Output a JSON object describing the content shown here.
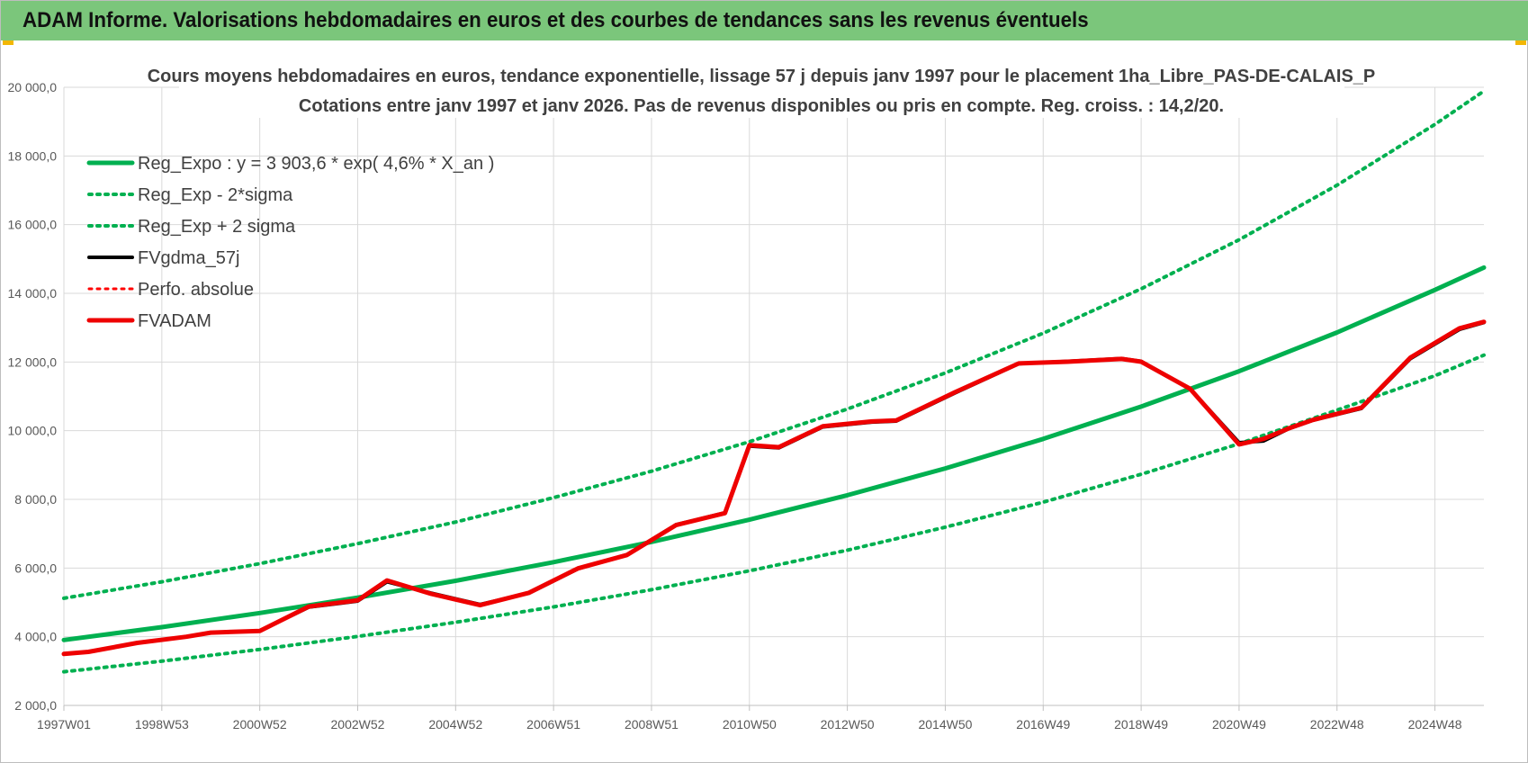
{
  "banner": {
    "title": "ADAM Informe. Valorisations hebdomadaires en euros et des courbes de tendances sans les revenus éventuels",
    "accent_color": "#7bc67b"
  },
  "chart_data": {
    "type": "line",
    "title": "Cours moyens hebdomadaires en euros, tendance exponentielle, lissage 57 j depuis janv 1997 pour le placement 1ha_Libre_PAS-DE-CALAIS_P",
    "subtitle": "Cotations entre janv 1997 et janv 2026. Pas de revenus disponibles ou pris en compte. Reg. croiss. : 14,2/20.",
    "xlabel": "",
    "ylabel": "",
    "ylim": [
      2000,
      20000
    ],
    "xlim": [
      1997.0,
      2026.0
    ],
    "grid": true,
    "legend_position": "top-left",
    "y_ticks": [
      {
        "value": 2000,
        "label": "2 000,0"
      },
      {
        "value": 4000,
        "label": "4 000,0"
      },
      {
        "value": 6000,
        "label": "6 000,0"
      },
      {
        "value": 8000,
        "label": "8 000,0"
      },
      {
        "value": 10000,
        "label": "10 000,0"
      },
      {
        "value": 12000,
        "label": "12 000,0"
      },
      {
        "value": 14000,
        "label": "14 000,0"
      },
      {
        "value": 16000,
        "label": "16 000,0"
      },
      {
        "value": 18000,
        "label": "18 000,0"
      },
      {
        "value": 20000,
        "label": "20 000,0"
      }
    ],
    "x_ticks": [
      {
        "value": 1997.0,
        "label": "1997W01"
      },
      {
        "value": 1999.0,
        "label": "1998W53"
      },
      {
        "value": 2001.0,
        "label": "2000W52"
      },
      {
        "value": 2003.0,
        "label": "2002W52"
      },
      {
        "value": 2005.0,
        "label": "2004W52"
      },
      {
        "value": 2007.0,
        "label": "2006W51"
      },
      {
        "value": 2009.0,
        "label": "2008W51"
      },
      {
        "value": 2011.0,
        "label": "2010W50"
      },
      {
        "value": 2013.0,
        "label": "2012W50"
      },
      {
        "value": 2015.0,
        "label": "2014W50"
      },
      {
        "value": 2017.0,
        "label": "2016W49"
      },
      {
        "value": 2019.0,
        "label": "2018W49"
      },
      {
        "value": 2021.0,
        "label": "2020W49"
      },
      {
        "value": 2023.0,
        "label": "2022W48"
      },
      {
        "value": 2025.0,
        "label": "2024W48"
      }
    ],
    "series": [
      {
        "name": "Reg_Expo : y = 3 903,6 * exp( 4,6% *  X_an )",
        "color": "#00b050",
        "style": "solid",
        "width": 5,
        "x": [
          1997,
          1999,
          2001,
          2003,
          2005,
          2007,
          2009,
          2011,
          2013,
          2015,
          2017,
          2019,
          2021,
          2023,
          2025,
          2026
        ],
        "values": [
          3904,
          4280,
          4690,
          5140,
          5630,
          6170,
          6760,
          7410,
          8120,
          8900,
          9760,
          10700,
          11730,
          12860,
          14100,
          14750
        ]
      },
      {
        "name": "Reg_Exp - 2*sigma",
        "color": "#00b050",
        "style": "dotted",
        "width": 4,
        "x": [
          1997,
          1999,
          2001,
          2003,
          2005,
          2007,
          2009,
          2011,
          2013,
          2015,
          2017,
          2019,
          2021,
          2023,
          2025,
          2026
        ],
        "values": [
          2980,
          3290,
          3630,
          4010,
          4420,
          4870,
          5370,
          5920,
          6520,
          7190,
          7920,
          8730,
          9620,
          10600,
          11600,
          12200
        ]
      },
      {
        "name": "Reg_Exp + 2 sigma",
        "color": "#00b050",
        "style": "dotted",
        "width": 4,
        "x": [
          1997,
          1999,
          2001,
          2003,
          2005,
          2007,
          2009,
          2011,
          2013,
          2015,
          2017,
          2019,
          2021,
          2023,
          2025,
          2026
        ],
        "values": [
          5120,
          5600,
          6130,
          6710,
          7340,
          8050,
          8820,
          9680,
          10630,
          11680,
          12840,
          14130,
          15560,
          17150,
          18920,
          19890
        ]
      },
      {
        "name": "FVgdma_57j",
        "color": "#000000",
        "style": "solid",
        "width": 4,
        "x": [
          1997,
          1997.5,
          1998.5,
          1999.5,
          2000,
          2001,
          2002,
          2003,
          2003.6,
          2004.5,
          2005.5,
          2006.5,
          2007.5,
          2008.5,
          2009.5,
          2010.5,
          2011,
          2011.6,
          2012.5,
          2013.5,
          2014,
          2015.2,
          2016.5,
          2017.5,
          2018.6,
          2019,
          2020,
          2021,
          2021.5,
          2022,
          2022.5,
          2023.5,
          2024.5,
          2025.5,
          2026
        ],
        "values": [
          3500,
          3560,
          3820,
          4000,
          4120,
          4170,
          4860,
          5040,
          5600,
          5270,
          4940,
          5270,
          5980,
          6390,
          7260,
          7610,
          9550,
          9500,
          10110,
          10250,
          10280,
          11100,
          11950,
          12020,
          12100,
          12020,
          11220,
          9650,
          9700,
          10050,
          10300,
          10650,
          12100,
          12950,
          13150
        ]
      },
      {
        "name": "Perfo. absolue",
        "color": "#ff0000",
        "style": "dotted",
        "width": 3,
        "x": [],
        "values": []
      },
      {
        "name": "FVADAM",
        "color": "#ee0000",
        "style": "solid",
        "width": 5,
        "x": [
          1997,
          1997.5,
          1998.5,
          1999.5,
          2000,
          2001,
          2002,
          2003,
          2003.6,
          2004.5,
          2005.5,
          2006.5,
          2007.5,
          2008.5,
          2009.5,
          2010.5,
          2011,
          2011.6,
          2012.5,
          2013.5,
          2014,
          2015.2,
          2016.5,
          2017.5,
          2018.6,
          2019,
          2020,
          2021,
          2021.5,
          2022,
          2022.5,
          2023.5,
          2024.5,
          2025.5,
          2026
        ],
        "values": [
          3500,
          3560,
          3820,
          4000,
          4120,
          4170,
          4880,
          5060,
          5640,
          5250,
          4920,
          5280,
          5990,
          6380,
          7250,
          7600,
          9580,
          9520,
          10130,
          10270,
          10300,
          11120,
          11960,
          12010,
          12090,
          12010,
          11220,
          9600,
          9760,
          10060,
          10310,
          10670,
          12130,
          12980,
          13170
        ]
      }
    ]
  }
}
